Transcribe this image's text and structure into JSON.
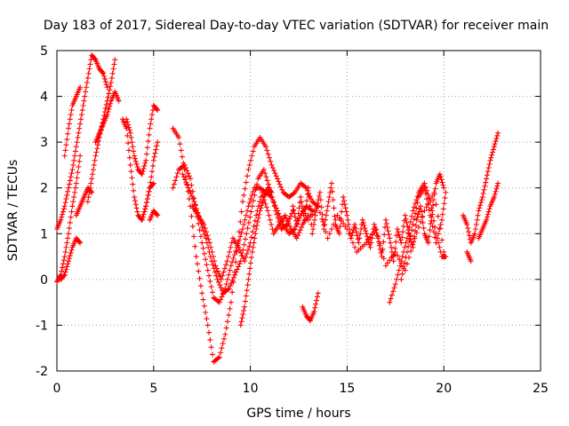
{
  "chart_data": {
    "type": "scatter",
    "title": "Day 183 of 2017, Sidereal Day-to-day VTEC variation (SDTVAR) for receiver main",
    "xlabel": "GPS time / hours",
    "ylabel": "SDTVAR / TECUs",
    "xlim": [
      0,
      25
    ],
    "ylim": [
      -2,
      5
    ],
    "xticks": [
      "0",
      "5",
      "10",
      "15",
      "20",
      "25"
    ],
    "yticks": [
      "-2",
      "-1",
      "0",
      "1",
      "2",
      "3",
      "4",
      "5"
    ],
    "grid": true,
    "marker": "plus",
    "color": "#ff0000",
    "series": [
      {
        "x": [
          0.0,
          0.2,
          0.4,
          0.6,
          0.8,
          1.0,
          1.2,
          1.4,
          1.6,
          1.8,
          2.0,
          2.2,
          2.4,
          2.6
        ],
        "y": [
          1.1,
          1.3,
          1.6,
          2.0,
          2.4,
          2.9,
          3.4,
          3.9,
          4.4,
          4.9,
          4.8,
          4.6,
          4.5,
          4.2
        ]
      },
      {
        "x": [
          0.4,
          0.6,
          0.8,
          1.0,
          1.2
        ],
        "y": [
          2.7,
          3.3,
          3.8,
          4.0,
          4.2
        ]
      },
      {
        "x": [
          0.0,
          0.2,
          0.4,
          0.6,
          0.8,
          1.0,
          1.2
        ],
        "y": [
          -0.05,
          0.1,
          0.5,
          1.0,
          1.6,
          2.1,
          2.7
        ]
      },
      {
        "x": [
          0.2,
          0.4,
          0.6,
          0.8,
          1.0,
          1.2
        ],
        "y": [
          0.0,
          0.1,
          0.4,
          0.7,
          0.9,
          0.8
        ]
      },
      {
        "x": [
          1.0,
          1.2,
          1.4,
          1.6,
          1.8
        ],
        "y": [
          1.4,
          1.6,
          1.8,
          2.0,
          1.9
        ]
      },
      {
        "x": [
          1.6,
          1.8,
          2.0,
          2.2,
          2.4,
          2.6,
          2.8,
          3.0
        ],
        "y": [
          1.7,
          2.2,
          2.7,
          3.1,
          3.5,
          3.9,
          4.3,
          4.8
        ]
      },
      {
        "x": [
          2.0,
          2.2,
          2.4,
          2.6,
          2.8,
          3.0,
          3.2
        ],
        "y": [
          3.0,
          3.2,
          3.4,
          3.6,
          3.9,
          4.1,
          3.9
        ]
      },
      {
        "x": [
          3.4,
          3.6,
          3.8,
          4.0,
          4.2,
          4.4,
          4.6,
          4.8,
          5.0
        ],
        "y": [
          3.5,
          3.3,
          2.5,
          1.8,
          1.4,
          1.3,
          1.6,
          2.0,
          2.1
        ]
      },
      {
        "x": [
          3.6,
          3.8,
          4.0,
          4.2,
          4.4,
          4.6,
          4.8,
          5.0,
          5.2
        ],
        "y": [
          3.5,
          3.2,
          2.7,
          2.4,
          2.3,
          2.6,
          3.3,
          3.8,
          3.7
        ]
      },
      {
        "x": [
          4.4,
          4.6,
          4.8,
          5.0,
          5.2
        ],
        "y": [
          1.3,
          1.6,
          2.0,
          2.6,
          3.0
        ]
      },
      {
        "x": [
          4.8,
          5.0,
          5.2
        ],
        "y": [
          1.3,
          1.5,
          1.4
        ]
      },
      {
        "x": [
          6.0,
          6.3,
          6.6,
          6.9,
          7.2,
          7.5,
          7.8,
          8.1,
          8.4,
          8.7,
          9.0,
          9.3,
          9.6,
          9.9,
          10.2,
          10.5,
          10.8,
          11.1,
          11.4,
          11.7,
          12.0,
          12.3,
          12.6,
          12.9,
          13.2,
          13.5
        ],
        "y": [
          3.3,
          3.1,
          2.4,
          1.6,
          0.5,
          -0.3,
          -1.0,
          -1.8,
          -1.7,
          -1.2,
          -0.5,
          0.6,
          1.7,
          2.4,
          2.9,
          3.1,
          2.9,
          2.5,
          2.2,
          1.9,
          1.8,
          1.9,
          2.1,
          2.0,
          1.7,
          1.6
        ]
      },
      {
        "x": [
          6.0,
          6.3,
          6.6,
          6.9,
          7.2,
          7.5,
          7.8,
          8.1,
          8.4,
          8.7,
          9.0,
          9.3,
          9.6,
          9.9,
          10.2,
          10.5,
          10.8,
          11.1,
          11.4,
          11.7,
          12.0,
          12.3,
          12.6,
          12.9,
          13.2
        ],
        "y": [
          2.0,
          2.4,
          2.5,
          2.2,
          1.5,
          0.8,
          0.2,
          -0.4,
          -0.5,
          -0.2,
          0.3,
          0.7,
          1.1,
          1.6,
          2.0,
          2.0,
          1.9,
          1.8,
          1.5,
          1.2,
          1.0,
          1.1,
          1.4,
          1.6,
          1.5
        ]
      },
      {
        "x": [
          6.5,
          6.8,
          7.1,
          7.4,
          7.7,
          8.0,
          8.3,
          8.6,
          8.9,
          9.2,
          9.5,
          9.8,
          10.1,
          10.4,
          10.7,
          11.0,
          11.3,
          11.6,
          11.9,
          12.2
        ],
        "y": [
          2.3,
          2.0,
          1.7,
          1.3,
          0.9,
          0.4,
          0.0,
          -0.3,
          -0.2,
          0.1,
          0.4,
          1.0,
          1.6,
          2.2,
          2.4,
          2.0,
          1.5,
          1.1,
          1.2,
          1.5
        ]
      },
      {
        "x": [
          7.0,
          7.3,
          7.6,
          7.9,
          8.2,
          8.5,
          8.8,
          9.1,
          9.4,
          9.7,
          10.0,
          10.3,
          10.6,
          10.9,
          11.2,
          11.5,
          11.8,
          12.1,
          12.4,
          12.7,
          13.0
        ],
        "y": [
          1.6,
          1.4,
          1.2,
          0.8,
          0.3,
          0.0,
          0.4,
          0.9,
          0.7,
          0.4,
          0.8,
          1.4,
          1.9,
          1.5,
          1.0,
          1.2,
          1.4,
          1.1,
          0.9,
          1.2,
          1.4
        ]
      },
      {
        "x": [
          9.5,
          9.7,
          9.9,
          10.1,
          10.3,
          10.5,
          10.7,
          10.9,
          11.1
        ],
        "y": [
          -1.0,
          -0.6,
          0.0,
          0.6,
          1.1,
          1.5,
          1.8,
          2.0,
          1.9
        ]
      },
      {
        "x": [
          12.7,
          12.9,
          13.1,
          13.3,
          13.5
        ],
        "y": [
          -0.6,
          -0.8,
          -0.9,
          -0.7,
          -0.3
        ]
      },
      {
        "x": [
          12.2,
          12.4,
          12.6,
          12.8,
          13.0,
          13.2,
          13.4,
          13.6,
          13.8,
          14.0,
          14.2,
          14.4,
          14.6,
          14.8,
          15.0,
          15.2,
          15.4,
          15.6,
          15.8,
          16.0,
          16.2,
          16.4,
          16.6,
          16.8,
          17.0,
          17.2,
          17.4,
          17.6,
          17.8,
          18.0,
          18.2,
          18.4,
          18.6,
          18.8,
          19.0,
          19.2,
          19.4,
          19.6,
          19.8,
          20.0
        ],
        "y": [
          1.6,
          1.2,
          1.8,
          1.3,
          2.0,
          1.0,
          1.5,
          1.9,
          1.1,
          1.6,
          2.1,
          1.2,
          1.0,
          1.8,
          1.4,
          0.9,
          1.2,
          0.8,
          1.3,
          1.0,
          0.7,
          1.2,
          0.9,
          0.5,
          1.3,
          0.9,
          0.4,
          1.1,
          0.8,
          1.4,
          1.0,
          0.7,
          1.3,
          1.6,
          1.0,
          0.8,
          1.5,
          2.1,
          2.3,
          2.0
        ]
      },
      {
        "x": [
          13.0,
          13.5,
          14.0,
          14.5,
          15.0,
          15.5,
          16.0,
          16.5,
          17.0,
          17.5,
          18.0,
          18.5,
          19.0,
          19.5,
          20.0
        ],
        "y": [
          1.3,
          1.6,
          0.9,
          1.4,
          1.1,
          0.6,
          0.8,
          1.1,
          0.3,
          0.6,
          0.2,
          0.9,
          1.5,
          1.9,
          0.6
        ]
      },
      {
        "x": [
          17.2,
          17.5,
          17.8,
          18.1,
          18.4,
          18.7,
          19.0,
          19.3,
          19.6,
          19.9,
          20.1
        ],
        "y": [
          -0.5,
          -0.1,
          0.4,
          0.9,
          1.5,
          1.9,
          2.1,
          1.7,
          1.0,
          0.5,
          0.5
        ]
      },
      {
        "x": [
          17.8,
          18.1,
          18.4,
          18.7,
          19.0,
          19.3,
          19.6,
          19.9,
          20.1
        ],
        "y": [
          0.0,
          0.6,
          1.2,
          1.8,
          2.0,
          1.4,
          0.8,
          1.3,
          1.9
        ]
      },
      {
        "x": [
          21.0,
          21.2,
          21.4,
          21.6,
          21.8,
          22.0,
          22.2,
          22.4,
          22.6,
          22.8
        ],
        "y": [
          1.4,
          1.2,
          0.8,
          1.0,
          1.5,
          1.8,
          2.2,
          2.6,
          2.9,
          3.2
        ]
      },
      {
        "x": [
          21.2,
          21.4
        ],
        "y": [
          0.6,
          0.4
        ]
      },
      {
        "x": [
          21.8,
          22.0,
          22.2,
          22.4,
          22.6,
          22.8
        ],
        "y": [
          0.9,
          1.1,
          1.3,
          1.6,
          1.8,
          2.1
        ]
      }
    ]
  }
}
